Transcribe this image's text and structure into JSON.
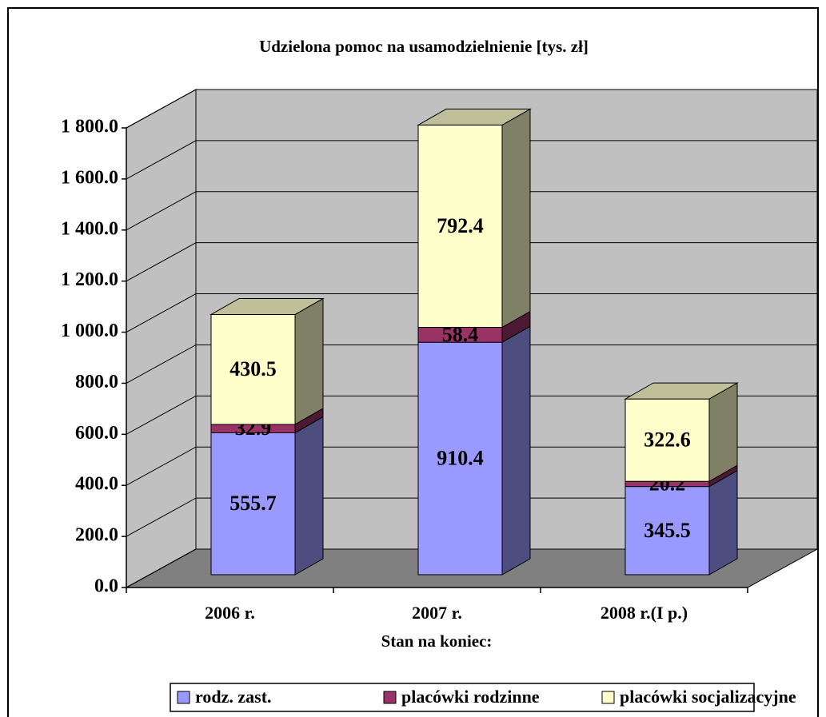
{
  "chart_data": {
    "type": "bar3d_stacked",
    "title": "Udzielona pomoc na usamodzielnienie [tys. zł]",
    "x_label": "Stan na koniec:",
    "categories": [
      "2006 r.",
      "2007 r.",
      "2008 r.(I p.)"
    ],
    "series": [
      {
        "name": "rodz. zast.",
        "color": "#9999ff",
        "values": [
          555.7,
          910.4,
          345.5
        ]
      },
      {
        "name": "placówki rodzinne",
        "color": "#993366",
        "values": [
          32.9,
          58.4,
          20.2
        ]
      },
      {
        "name": "placówki socjalizacyjne",
        "color": "#ffffcc",
        "values": [
          430.5,
          792.4,
          322.6
        ]
      }
    ],
    "ylim": [
      0,
      1800
    ],
    "yticks": [
      {
        "value": 0,
        "label": "0.0"
      },
      {
        "value": 200,
        "label": "200.0"
      },
      {
        "value": 400,
        "label": "400.0"
      },
      {
        "value": 600,
        "label": "600.0"
      },
      {
        "value": 800,
        "label": "800.0"
      },
      {
        "value": 1000,
        "label": "1 000.0"
      },
      {
        "value": 1200,
        "label": "1 200.0"
      },
      {
        "value": 1400,
        "label": "1 400.0"
      },
      {
        "value": 1600,
        "label": "1 600.0"
      },
      {
        "value": 1800,
        "label": "1 800.0"
      }
    ],
    "grid": true,
    "legend": "bottom"
  }
}
